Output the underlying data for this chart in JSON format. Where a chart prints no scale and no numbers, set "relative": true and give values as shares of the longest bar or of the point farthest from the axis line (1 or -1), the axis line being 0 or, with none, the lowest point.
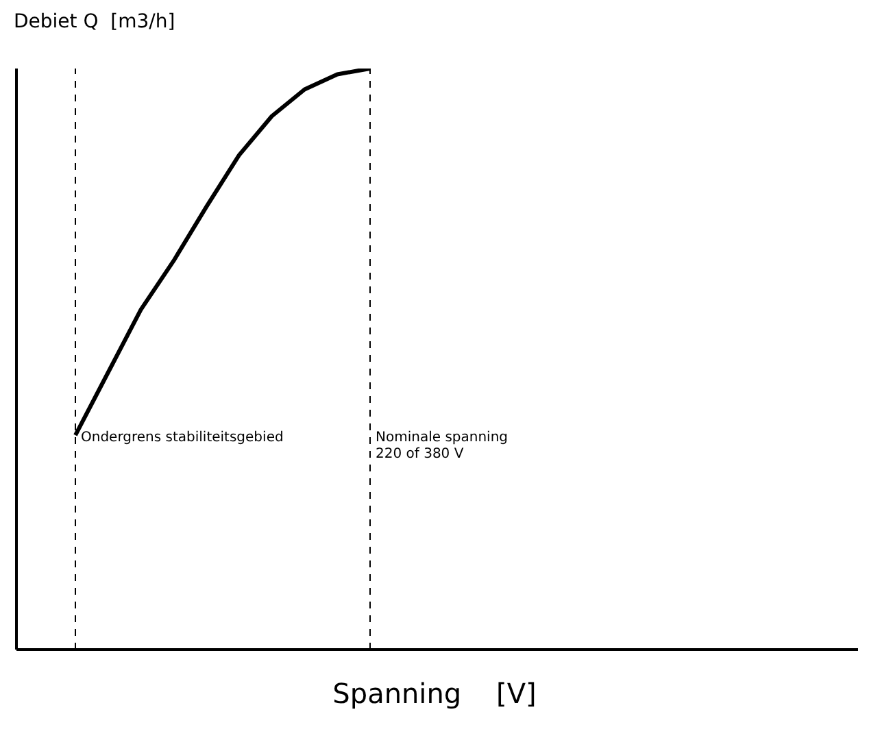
{
  "chart_data": {
    "type": "line",
    "relative": true,
    "ylabel": "Debiet Q  [m3/h]",
    "xlabel": "Spanning    [V]",
    "categories": [
      null,
      null,
      null,
      null,
      null,
      null,
      null,
      null,
      null,
      null
    ],
    "series": [
      {
        "color": "#000000",
        "values": [
          0.369,
          0.477,
          0.585,
          0.669,
          0.762,
          0.851,
          0.918,
          0.964,
          0.99,
          1
        ]
      }
    ],
    "annotations": [
      "Ondergrens stabiliteitsgebied",
      "Nominale spanning\n220 of 380 V"
    ],
    "marker": "none",
    "line_style": "solid"
  }
}
